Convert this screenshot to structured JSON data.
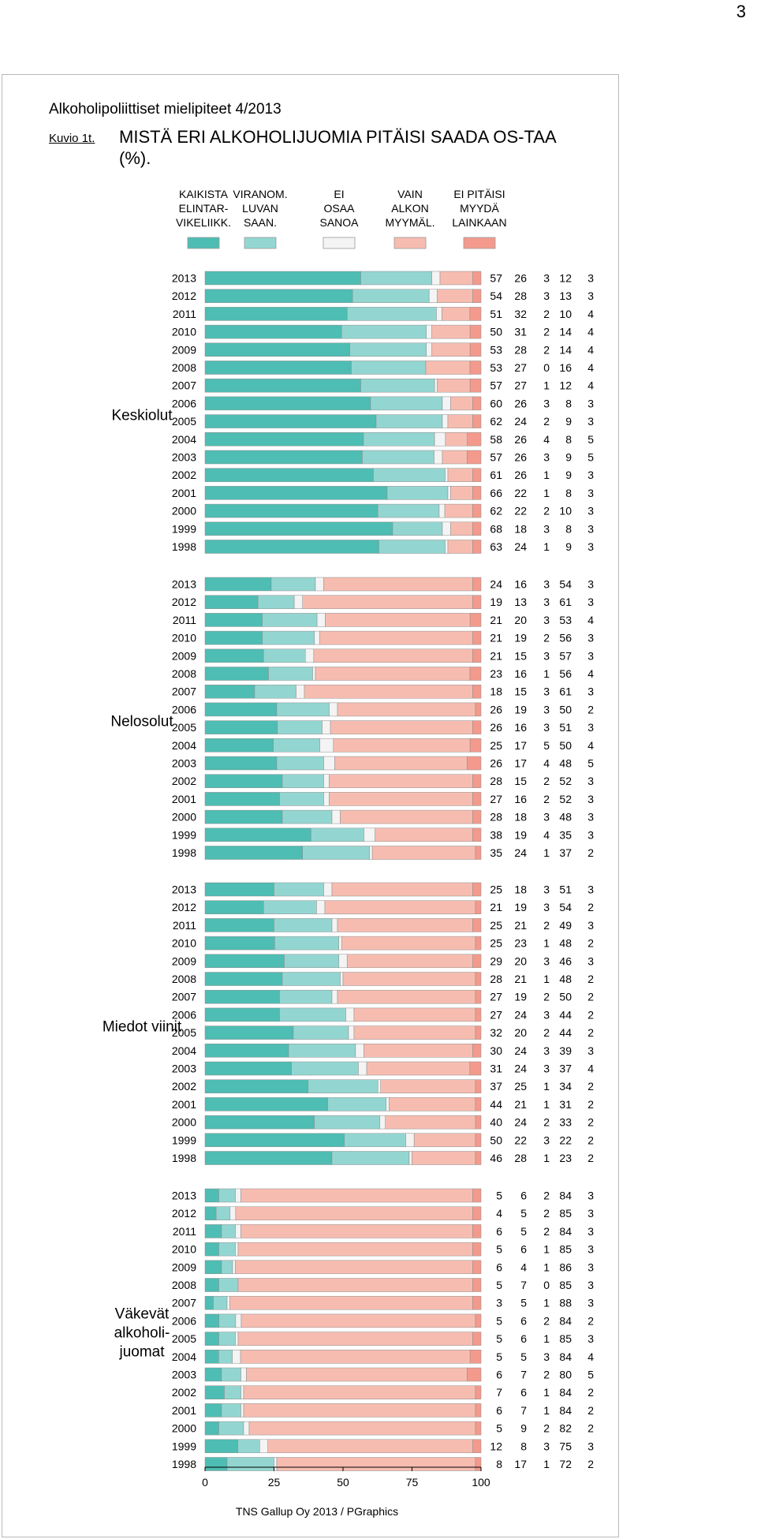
{
  "page_number": "3",
  "report_title": "Alkoholipoliittiset mielipiteet 4/2013",
  "figure_label": "Kuvio 1t.",
  "figure_heading": "MISTÄ ERI ALKOHOLIJUOMIA PITÄISI SAADA OS-TAA (%).",
  "footer": "TNS Gallup Oy 2013 / PGraphics",
  "chart_data": {
    "type": "bar",
    "orientation": "horizontal-stacked-100",
    "title": "MISTÄ ERI ALKOHOLIJUOMIA PITÄISI SAADA OS-TAA (%).",
    "xlim": [
      0,
      100
    ],
    "xticks": [
      0,
      25,
      50,
      75,
      100
    ],
    "legend": [
      {
        "name": "KAIKISTA ELINTAR- VIKELIIKK.",
        "lines": [
          "KAIKISTA",
          "ELINTAR-",
          "VIKELIIKK."
        ],
        "color": "#4ebdb3"
      },
      {
        "name": "VIRANOM. LUVAN SAAN.",
        "lines": [
          "VIRANOM.",
          "LUVAN",
          "SAAN."
        ],
        "color": "#93d6d1"
      },
      {
        "name": "EI OSAA SANOA",
        "lines": [
          "EI",
          "OSAA",
          "SANOA"
        ],
        "color": "#f4f4f4"
      },
      {
        "name": "VAIN ALKON MYYMÄL.",
        "lines": [
          "VAIN",
          "ALKON",
          "MYYMÄL."
        ],
        "color": "#f7bcb0"
      },
      {
        "name": "EI PITÄISI MYYDÄ LAINKAAN",
        "lines": [
          "EI PITÄISI",
          "MYYDÄ",
          "LAINKAAN"
        ],
        "color": "#f39a8c"
      }
    ],
    "groups": [
      {
        "name": "Keskiolut",
        "label_lines": [
          "Keskiolut"
        ],
        "years": [
          "2013",
          "2012",
          "2011",
          "2010",
          "2009",
          "2008",
          "2007",
          "2006",
          "2005",
          "2004",
          "2003",
          "2002",
          "2001",
          "2000",
          "1999",
          "1998"
        ],
        "values": [
          [
            57,
            26,
            3,
            12,
            3
          ],
          [
            54,
            28,
            3,
            13,
            3
          ],
          [
            51,
            32,
            2,
            10,
            4
          ],
          [
            50,
            31,
            2,
            14,
            4
          ],
          [
            53,
            28,
            2,
            14,
            4
          ],
          [
            53,
            27,
            0,
            16,
            4
          ],
          [
            57,
            27,
            1,
            12,
            4
          ],
          [
            60,
            26,
            3,
            8,
            3
          ],
          [
            62,
            24,
            2,
            9,
            3
          ],
          [
            58,
            26,
            4,
            8,
            5
          ],
          [
            57,
            26,
            3,
            9,
            5
          ],
          [
            61,
            26,
            1,
            9,
            3
          ],
          [
            66,
            22,
            1,
            8,
            3
          ],
          [
            62,
            22,
            2,
            10,
            3
          ],
          [
            68,
            18,
            3,
            8,
            3
          ],
          [
            63,
            24,
            1,
            9,
            3
          ]
        ]
      },
      {
        "name": "Nelosolut",
        "label_lines": [
          "Nelosolut"
        ],
        "years": [
          "2013",
          "2012",
          "2011",
          "2010",
          "2009",
          "2008",
          "2007",
          "2006",
          "2005",
          "2004",
          "2003",
          "2002",
          "2001",
          "2000",
          "1999",
          "1998"
        ],
        "values": [
          [
            24,
            16,
            3,
            54,
            3
          ],
          [
            19,
            13,
            3,
            61,
            3
          ],
          [
            21,
            20,
            3,
            53,
            4
          ],
          [
            21,
            19,
            2,
            56,
            3
          ],
          [
            21,
            15,
            3,
            57,
            3
          ],
          [
            23,
            16,
            1,
            56,
            4
          ],
          [
            18,
            15,
            3,
            61,
            3
          ],
          [
            26,
            19,
            3,
            50,
            2
          ],
          [
            26,
            16,
            3,
            51,
            3
          ],
          [
            25,
            17,
            5,
            50,
            4
          ],
          [
            26,
            17,
            4,
            48,
            5
          ],
          [
            28,
            15,
            2,
            52,
            3
          ],
          [
            27,
            16,
            2,
            52,
            3
          ],
          [
            28,
            18,
            3,
            48,
            3
          ],
          [
            38,
            19,
            4,
            35,
            3
          ],
          [
            35,
            24,
            1,
            37,
            2
          ]
        ]
      },
      {
        "name": "Miedot viinit",
        "label_lines": [
          "Miedot viinit"
        ],
        "years": [
          "2013",
          "2012",
          "2011",
          "2010",
          "2009",
          "2008",
          "2007",
          "2006",
          "2005",
          "2004",
          "2003",
          "2002",
          "2001",
          "2000",
          "1999",
          "1998"
        ],
        "values": [
          [
            25,
            18,
            3,
            51,
            3
          ],
          [
            21,
            19,
            3,
            54,
            2
          ],
          [
            25,
            21,
            2,
            49,
            3
          ],
          [
            25,
            23,
            1,
            48,
            2
          ],
          [
            29,
            20,
            3,
            46,
            3
          ],
          [
            28,
            21,
            1,
            48,
            2
          ],
          [
            27,
            19,
            2,
            50,
            2
          ],
          [
            27,
            24,
            3,
            44,
            2
          ],
          [
            32,
            20,
            2,
            44,
            2
          ],
          [
            30,
            24,
            3,
            39,
            3
          ],
          [
            31,
            24,
            3,
            37,
            4
          ],
          [
            37,
            25,
            1,
            34,
            2
          ],
          [
            44,
            21,
            1,
            31,
            2
          ],
          [
            40,
            24,
            2,
            33,
            2
          ],
          [
            50,
            22,
            3,
            22,
            2
          ],
          [
            46,
            28,
            1,
            23,
            2
          ]
        ]
      },
      {
        "name": "Väkevät alkoholi- juomat",
        "label_lines": [
          "Väkevät",
          "alkoholi-",
          "juomat"
        ],
        "years": [
          "2013",
          "2012",
          "2011",
          "2010",
          "2009",
          "2008",
          "2007",
          "2006",
          "2005",
          "2004",
          "2003",
          "2002",
          "2001",
          "2000",
          "1999",
          "1998"
        ],
        "values": [
          [
            5,
            6,
            2,
            84,
            3
          ],
          [
            4,
            5,
            2,
            85,
            3
          ],
          [
            6,
            5,
            2,
            84,
            3
          ],
          [
            5,
            6,
            1,
            85,
            3
          ],
          [
            6,
            4,
            1,
            86,
            3
          ],
          [
            5,
            7,
            0,
            85,
            3
          ],
          [
            3,
            5,
            1,
            88,
            3
          ],
          [
            5,
            6,
            2,
            84,
            2
          ],
          [
            5,
            6,
            1,
            85,
            3
          ],
          [
            5,
            5,
            3,
            84,
            4
          ],
          [
            6,
            7,
            2,
            80,
            5
          ],
          [
            7,
            6,
            1,
            84,
            2
          ],
          [
            6,
            7,
            1,
            84,
            2
          ],
          [
            5,
            9,
            2,
            82,
            2
          ],
          [
            12,
            8,
            3,
            75,
            3
          ],
          [
            8,
            17,
            1,
            72,
            2
          ]
        ]
      }
    ]
  }
}
